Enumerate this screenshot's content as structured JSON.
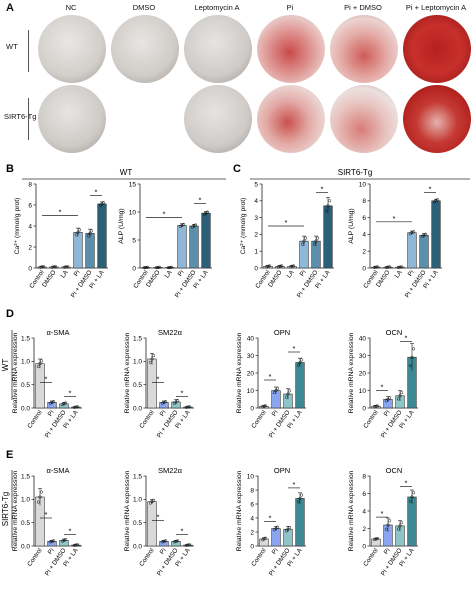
{
  "panel_a": {
    "letter": "A",
    "columns": [
      "NC",
      "DMSO",
      "Leptomycin A",
      "Pi",
      "Pi + DMSO",
      "Pi + Leptomycin A"
    ],
    "rows": [
      "WT",
      "SIRT6-Tg"
    ]
  },
  "panel_letters": {
    "b": "B",
    "c": "C",
    "d": "D",
    "e": "E"
  },
  "group_labels": {
    "wt": "WT",
    "tg": "SIRT6-Tg"
  },
  "colors": {
    "control": "#d9d9d9",
    "dmso": "#bfbfbf",
    "la": "#e6e6e6",
    "pi": "#8fb8d8",
    "pi_dmso": "#5c8fab",
    "pi_la": "#2c5f78",
    "pi_blue": "#8aa6f0",
    "pi_dmso_teal": "#8fc4c9",
    "pi_la_teal": "#3e8a94"
  },
  "chart_data": [
    {
      "id": "b_ca",
      "type": "bar",
      "ylabel": "Ca²⁺ (mmol/g prot)",
      "ylim": [
        0,
        8
      ],
      "yticks": [
        0,
        2,
        4,
        6,
        8
      ],
      "categories": [
        "Control",
        "DMSO",
        "LA",
        "Pi",
        "Pi + DMSO",
        "Pi + LA"
      ],
      "values": [
        0.1,
        0.1,
        0.1,
        3.4,
        3.3,
        6.1
      ],
      "errors": [
        0.05,
        0.05,
        0.05,
        0.4,
        0.4,
        0.2
      ],
      "sig": [
        [
          0,
          3,
          5
        ],
        [
          4,
          5,
          6.9
        ]
      ]
    },
    {
      "id": "b_alp",
      "type": "bar",
      "ylabel": "ALP (U/mg)",
      "ylim": [
        0,
        15
      ],
      "yticks": [
        0,
        5,
        10,
        15
      ],
      "categories": [
        "Control",
        "DMSO",
        "LA",
        "Pi",
        "Pi + DMSO",
        "Pi + LA"
      ],
      "values": [
        0.1,
        0.1,
        0.1,
        7.6,
        7.5,
        9.8
      ],
      "errors": [
        0.05,
        0.05,
        0.05,
        0.3,
        0.3,
        0.3
      ],
      "sig": [
        [
          0,
          3,
          9
        ],
        [
          4,
          5,
          11.5
        ]
      ]
    },
    {
      "id": "c_ca",
      "type": "bar",
      "ylabel": "Ca²⁺ (mmol/g prot)",
      "ylim": [
        0,
        5
      ],
      "yticks": [
        0,
        1,
        2,
        3,
        4,
        5
      ],
      "categories": [
        "Control",
        "DMSO",
        "LA",
        "Pi",
        "Pi + DMSO",
        "Pi + LA"
      ],
      "values": [
        0.1,
        0.1,
        0.1,
        1.6,
        1.6,
        3.7
      ],
      "errors": [
        0.05,
        0.05,
        0.05,
        0.3,
        0.3,
        0.5
      ],
      "sig": [
        [
          0,
          3,
          2.5
        ],
        [
          4,
          5,
          4.5
        ]
      ]
    },
    {
      "id": "c_alp",
      "type": "bar",
      "ylabel": "ALP (U/mg)",
      "ylim": [
        0,
        10
      ],
      "yticks": [
        0,
        2,
        4,
        6,
        8,
        10
      ],
      "categories": [
        "Control",
        "DMSO",
        "LA",
        "Pi",
        "Pi + DMSO",
        "Pi + LA"
      ],
      "values": [
        0.1,
        0.1,
        0.1,
        4.2,
        3.9,
        8.0
      ],
      "errors": [
        0.05,
        0.05,
        0.05,
        0.2,
        0.2,
        0.2
      ],
      "sig": [
        [
          0,
          3,
          5.5
        ],
        [
          4,
          5,
          9
        ]
      ]
    },
    {
      "id": "d_sma",
      "type": "bar",
      "title": "α-SMA",
      "ylabel": "Relative mRNA expression",
      "ylim": [
        0,
        1.5
      ],
      "yticks": [
        0.0,
        0.5,
        1.0,
        1.5
      ],
      "categories": [
        "Control",
        "Pi",
        "Pi + DMSO",
        "Pi + LA"
      ],
      "values": [
        0.95,
        0.12,
        0.09,
        0.02
      ],
      "errors": [
        0.1,
        0.03,
        0.03,
        0.01
      ],
      "sig": [
        [
          0,
          1,
          0.55
        ],
        [
          2,
          3,
          0.25
        ]
      ]
    },
    {
      "id": "d_sm22",
      "type": "bar",
      "title": "SM22α",
      "ylabel": "Relative mRNA expression",
      "ylim": [
        0,
        1.5
      ],
      "yticks": [
        0.0,
        0.5,
        1.0,
        1.5
      ],
      "categories": [
        "Control",
        "Pi",
        "Pi + DMSO",
        "Pi + LA"
      ],
      "values": [
        1.05,
        0.12,
        0.13,
        0.02
      ],
      "errors": [
        0.12,
        0.03,
        0.05,
        0.01
      ],
      "sig": [
        [
          0,
          1,
          0.55
        ],
        [
          2,
          3,
          0.25
        ]
      ]
    },
    {
      "id": "d_opn",
      "type": "bar",
      "title": "OPN",
      "ylabel": "Relative mRNA expression",
      "ylim": [
        0,
        40
      ],
      "yticks": [
        0,
        10,
        20,
        30,
        40
      ],
      "categories": [
        "Control",
        "Pi",
        "Pi + DMSO",
        "Pi + LA"
      ],
      "values": [
        1,
        10,
        8,
        26
      ],
      "errors": [
        0.5,
        2,
        3,
        2.5
      ],
      "sig": [
        [
          0,
          1,
          16
        ],
        [
          2,
          3,
          32
        ]
      ]
    },
    {
      "id": "d_ocn",
      "type": "bar",
      "title": "OCN",
      "ylabel": "Relative mRNA expression",
      "ylim": [
        0,
        40
      ],
      "yticks": [
        0,
        10,
        20,
        30,
        40
      ],
      "categories": [
        "Control",
        "Pi",
        "Pi + DMSO",
        "Pi + LA"
      ],
      "values": [
        1,
        5,
        7,
        29
      ],
      "errors": [
        0.3,
        1.5,
        3,
        8
      ],
      "sig": [
        [
          0,
          1,
          10
        ],
        [
          2,
          3,
          38
        ]
      ]
    },
    {
      "id": "e_sma",
      "type": "bar",
      "title": "α-SMA",
      "ylabel": "Relative mRNA expression",
      "ylim": [
        0,
        1.5
      ],
      "yticks": [
        0.0,
        0.5,
        1.0,
        1.5
      ],
      "categories": [
        "Control",
        "Pi",
        "Pi + DMSO",
        "Pi + LA"
      ],
      "values": [
        1.05,
        0.1,
        0.12,
        0.02
      ],
      "errors": [
        0.18,
        0.02,
        0.03,
        0.01
      ],
      "sig": [
        [
          0,
          1,
          0.6
        ],
        [
          2,
          3,
          0.25
        ]
      ]
    },
    {
      "id": "e_sm22",
      "type": "bar",
      "title": "SM22α",
      "ylabel": "Relative mRNA expression",
      "ylim": [
        0,
        1.5
      ],
      "yticks": [
        0.0,
        0.5,
        1.0,
        1.5
      ],
      "categories": [
        "Control",
        "Pi",
        "Pi + DMSO",
        "Pi + LA"
      ],
      "values": [
        0.95,
        0.1,
        0.1,
        0.02
      ],
      "errors": [
        0.05,
        0.02,
        0.02,
        0.01
      ],
      "sig": [
        [
          0,
          1,
          0.55
        ],
        [
          2,
          3,
          0.25
        ]
      ]
    },
    {
      "id": "e_opn",
      "type": "bar",
      "title": "OPN",
      "ylabel": "Relative mRNA expression",
      "ylim": [
        0,
        10
      ],
      "yticks": [
        0,
        2,
        4,
        6,
        8,
        10
      ],
      "categories": [
        "Control",
        "Pi",
        "Pi + DMSO",
        "Pi + LA"
      ],
      "values": [
        1,
        2.5,
        2.4,
        6.8
      ],
      "errors": [
        0.2,
        0.3,
        0.4,
        0.8
      ],
      "sig": [
        [
          0,
          1,
          3.5
        ],
        [
          2,
          3,
          8.3
        ]
      ]
    },
    {
      "id": "e_ocn",
      "type": "bar",
      "title": "OCN",
      "ylabel": "Relative mRNA expression",
      "ylim": [
        0,
        8
      ],
      "yticks": [
        0,
        2,
        4,
        6,
        8
      ],
      "categories": [
        "Control",
        "Pi",
        "Pi + DMSO",
        "Pi + LA"
      ],
      "values": [
        0.8,
        2.4,
        2.3,
        5.6
      ],
      "errors": [
        0.1,
        0.8,
        0.6,
        0.8
      ],
      "sig": [
        [
          0,
          1,
          3.3
        ],
        [
          2,
          3,
          6.8
        ]
      ]
    }
  ]
}
